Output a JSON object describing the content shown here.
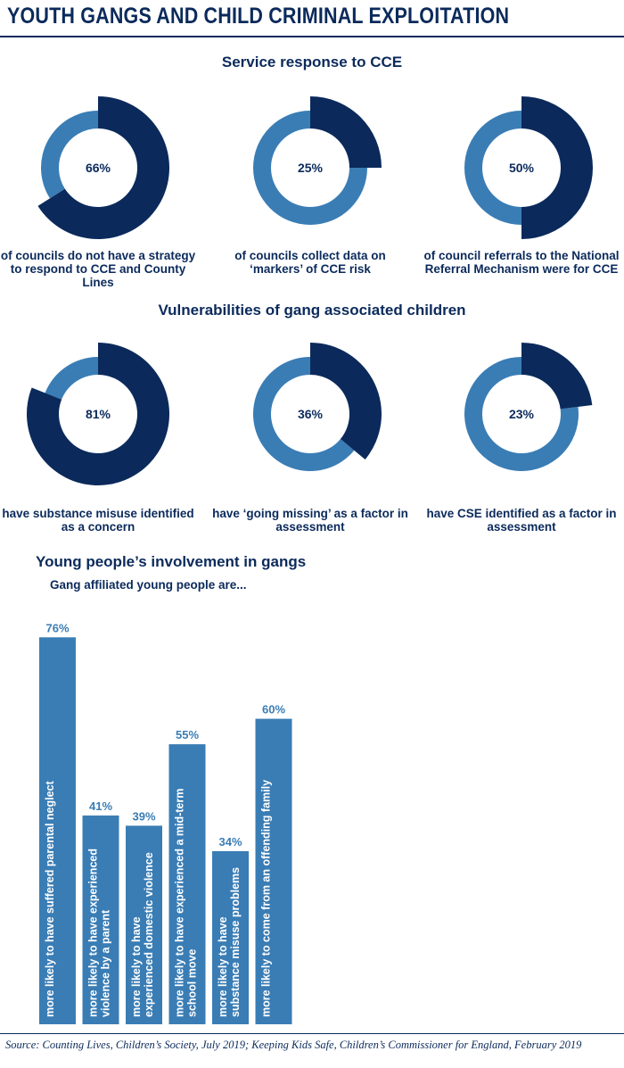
{
  "header": {
    "title": "YOUTH GANGS AND CHILD CRIMINAL EXPLOITATION"
  },
  "colors": {
    "dark": "#0b2a5b",
    "light": "#3a7db5"
  },
  "sections": {
    "service": {
      "title": "Service response to CCE",
      "donuts": [
        {
          "value": 66,
          "label": "66%",
          "caption": "of councils do not have a strategy to respond to CCE and County Lines"
        },
        {
          "value": 25,
          "label": "25%",
          "caption": "of councils collect data on ‘markers’ of CCE risk"
        },
        {
          "value": 50,
          "label": "50%",
          "caption": "of council referrals to the National Referral Mechanism were for CCE"
        }
      ]
    },
    "vulnerabilities": {
      "title": "Vulnerabilities of gang associated children",
      "donuts": [
        {
          "value": 81,
          "label": "81%",
          "caption": "have substance misuse identified as a concern"
        },
        {
          "value": 36,
          "label": "36%",
          "caption": "have ‘going missing’ as a factor in assessment"
        },
        {
          "value": 23,
          "label": "23%",
          "caption": "have CSE identified as a factor in assessment"
        }
      ]
    },
    "involvement": {
      "title": "Young people’s involvement in gangs",
      "subtitle": "Gang affiliated young people are..."
    }
  },
  "chart_data": {
    "type": "bar",
    "title": "Young people’s involvement in gangs",
    "subtitle": "Gang affiliated young people are...",
    "categories": [
      "more likely to have suffered parental neglect",
      "more likely to have experienced violence by a parent",
      "more likely to have experienced domestic violence",
      "more likely to have experienced a mid-term school move",
      "more likely to have substance misuse problems",
      "more likely to come from an offending family"
    ],
    "values": [
      76,
      41,
      39,
      55,
      34,
      60
    ],
    "value_labels": [
      "76%",
      "41%",
      "39%",
      "55%",
      "34%",
      "60%"
    ],
    "ylim": [
      0,
      100
    ],
    "grid": false
  },
  "source": "Source: Counting Lives, Children’s Society, July 2019; Keeping Kids Safe, Children’s Commissioner for England, February 2019"
}
